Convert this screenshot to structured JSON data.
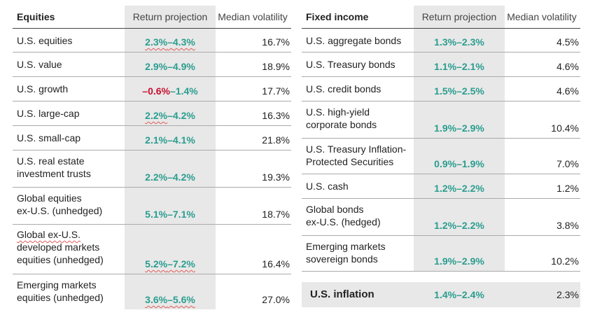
{
  "equities": {
    "header": {
      "title": "Equities",
      "col2": "Return projection",
      "col3": "Median volatility"
    },
    "rows": [
      {
        "name": "U.S. equities",
        "low": "2.3%",
        "high": "4.3%",
        "vol": "16.7%"
      },
      {
        "name": "U.S. value",
        "low": "2.9%",
        "high": "4.9%",
        "vol": "18.9%"
      },
      {
        "name": "U.S. growth",
        "low": "–0.6%",
        "high": "1.4%",
        "vol": "17.7%"
      },
      {
        "name": "U.S. large-cap",
        "low": "2.2%",
        "high": "4.2%",
        "vol": "16.3%"
      },
      {
        "name": "U.S. small-cap",
        "low": "2.1%",
        "high": "4.1%",
        "vol": "21.8%"
      },
      {
        "name_l1": "U.S. real estate",
        "name_l2": "investment trusts",
        "low": "2.2%",
        "high": "4.2%",
        "vol": "19.3%"
      },
      {
        "name_l1": "Global equities",
        "name_l2": "ex-U.S. (unhedged)",
        "low": "5.1%",
        "high": "7.1%",
        "vol": "18.7%"
      },
      {
        "name_l1": "Global ex-U.S.",
        "name_l2": "developed markets",
        "name_l3": "equities (unhedged)",
        "low": "5.2%",
        "high": "7.2%",
        "vol": "16.4%"
      },
      {
        "name_l1": "Emerging markets",
        "name_l2": "equities (unhedged)",
        "low": "3.6%",
        "high": "5.6%",
        "vol": "27.0%"
      }
    ]
  },
  "fixed_income": {
    "header": {
      "title": "Fixed income",
      "col2": "Return projection",
      "col3": "Median volatility"
    },
    "rows": [
      {
        "name": "U.S. aggregate bonds",
        "low": "1.3%",
        "high": "2.3%",
        "vol": "4.5%"
      },
      {
        "name": "U.S. Treasury bonds",
        "low": "1.1%",
        "high": "2.1%",
        "vol": "4.6%"
      },
      {
        "name": "U.S. credit bonds",
        "low": "1.5%",
        "high": "2.5%",
        "vol": "4.6%"
      },
      {
        "name_l1": "U.S. high-yield",
        "name_l2": "corporate bonds",
        "low": "1.9%",
        "high": "2.9%",
        "vol": "10.4%"
      },
      {
        "name_l1": "U.S. Treasury Inflation-",
        "name_l2": "Protected Securities",
        "low": "0.9%",
        "high": "1.9%",
        "vol": "7.0%"
      },
      {
        "name": "U.S. cash",
        "low": "1.2%",
        "high": "2.2%",
        "vol": "1.2%"
      },
      {
        "name_l1": "Global bonds",
        "name_l2": "ex-U.S. (hedged)",
        "low": "1.2%",
        "high": "2.2%",
        "vol": "3.8%"
      },
      {
        "name_l1": "Emerging markets",
        "name_l2": "sovereign bonds",
        "low": "1.9%",
        "high": "2.9%",
        "vol": "10.2%"
      }
    ],
    "inflation": {
      "name": "U.S. inflation",
      "low": "1.4%",
      "high": "2.4%",
      "vol": "2.3%"
    }
  },
  "colors": {
    "positive": "#2a9d8f",
    "negative": "#c8102e",
    "shade": "#e8e8e8"
  },
  "range_sep": "–"
}
